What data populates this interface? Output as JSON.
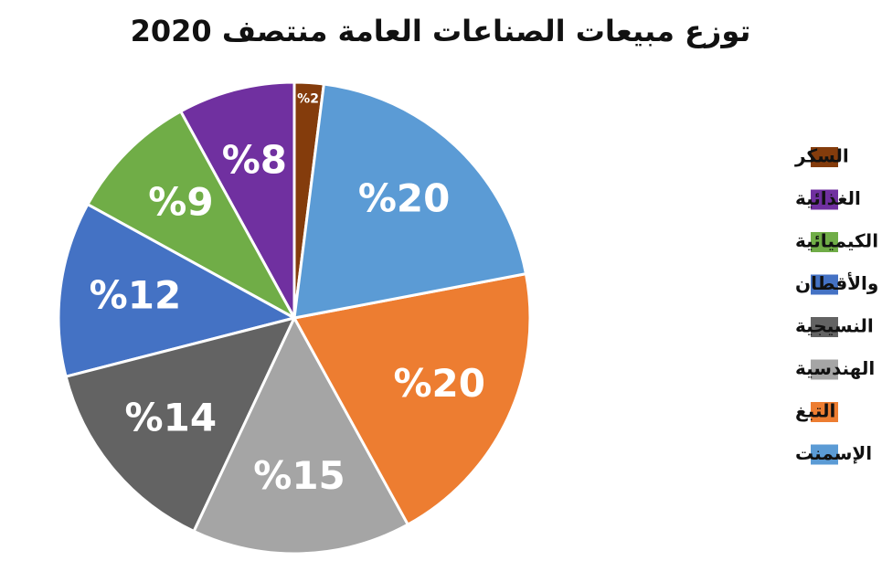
{
  "chart_data": {
    "type": "pie",
    "title": "توزع مبيعات الصناعات العامة منتصف 2020",
    "categories": [
      "السكر",
      "الغذائية",
      "الكيميائية",
      "الحلج والأقطان",
      "النسيجية",
      "الهندسية",
      "التبغ",
      "الإسمنت"
    ],
    "values": [
      2,
      8,
      9,
      12,
      14,
      15,
      20,
      20
    ],
    "value_labels": [
      "%2",
      "%8",
      "%9",
      "%12",
      "%14",
      "%15",
      "%20",
      "%20"
    ],
    "colors": [
      "#843c0c",
      "#7030a0",
      "#70ad47",
      "#4472c4",
      "#636363",
      "#a5a5a5",
      "#ed7d31",
      "#5b9bd5"
    ],
    "direction": "counterclockwise",
    "legend": "right"
  }
}
